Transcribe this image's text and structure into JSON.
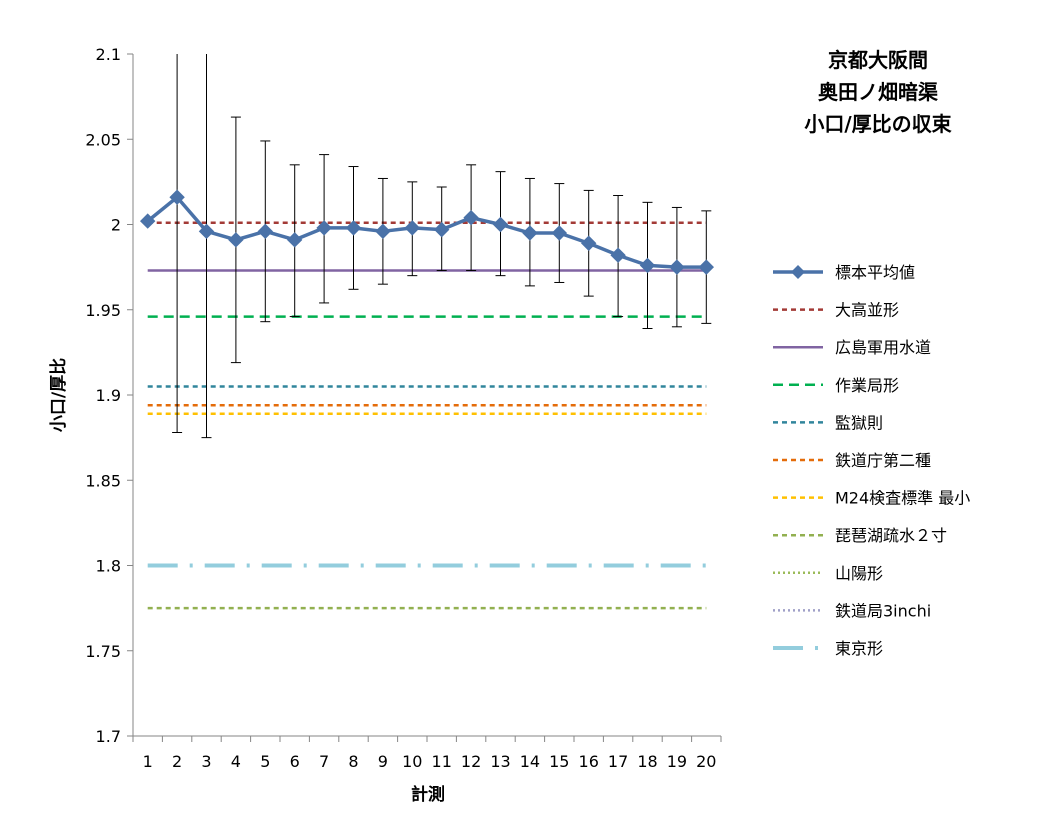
{
  "chart_data": {
    "type": "line",
    "title_lines": [
      "京都大阪間",
      "奥田ノ畑暗渠",
      "小口/厚比の収束"
    ],
    "xlabel": "計測",
    "ylabel": "小口/厚比",
    "ylim": [
      1.7,
      2.1
    ],
    "yticks": [
      "1.7",
      "1.75",
      "1.8",
      "1.85",
      "1.9",
      "1.95",
      "2",
      "2.05",
      "2.1"
    ],
    "x": [
      1,
      2,
      3,
      4,
      5,
      6,
      7,
      8,
      9,
      10,
      11,
      12,
      13,
      14,
      15,
      16,
      17,
      18,
      19,
      20
    ],
    "grid": false,
    "legend_position": "right",
    "series": [
      {
        "name": "標本平均値",
        "kind": "marker-line",
        "color": "#4a72a8",
        "values": [
          2.002,
          2.016,
          1.996,
          1.991,
          1.996,
          1.991,
          1.998,
          1.998,
          1.996,
          1.998,
          1.997,
          2.004,
          2.0,
          1.995,
          1.995,
          1.989,
          1.982,
          1.976,
          1.975,
          1.975
        ],
        "error_upper": [
          2.002,
          2.16,
          2.16,
          2.063,
          2.049,
          2.035,
          2.041,
          2.034,
          2.027,
          2.025,
          2.022,
          2.035,
          2.031,
          2.027,
          2.024,
          2.02,
          2.017,
          2.013,
          2.01,
          2.008
        ],
        "error_lower": [
          2.002,
          1.878,
          1.875,
          1.919,
          1.943,
          1.946,
          1.954,
          1.962,
          1.965,
          1.97,
          1.973,
          1.973,
          1.97,
          1.964,
          1.966,
          1.958,
          1.946,
          1.939,
          1.94,
          1.942
        ]
      },
      {
        "name": "大高並形",
        "kind": "hline",
        "value": 2.001,
        "color": "#a33a36",
        "dash": "5,4"
      },
      {
        "name": "広島軍用水道",
        "kind": "hline",
        "value": 1.973,
        "color": "#8064a2",
        "dash": ""
      },
      {
        "name": "作業局形",
        "kind": "hline",
        "value": 1.946,
        "color": "#00b050",
        "dash": "10,6"
      },
      {
        "name": "監獄則",
        "kind": "hline",
        "value": 1.905,
        "color": "#31859c",
        "dash": "5,4"
      },
      {
        "name": "鉄道庁第二種",
        "kind": "hline",
        "value": 1.894,
        "color": "#e46c0a",
        "dash": "5,4"
      },
      {
        "name": "M24検査標準 最小",
        "kind": "hline",
        "value": 1.889,
        "color": "#ffc000",
        "dash": "5,4"
      },
      {
        "name": "琵琶湖疏水２寸",
        "kind": "hline",
        "value": 1.775,
        "color": "#92b050",
        "dash": "5,4"
      },
      {
        "name": "山陽形",
        "kind": "hline",
        "value": 1.8,
        "color": "#9bbb59",
        "dash": "2,3",
        "hidden_line": true
      },
      {
        "name": "鉄道局3inchi",
        "kind": "hline",
        "value": 1.8,
        "color": "#a0a0c8",
        "dash": "2,3",
        "hidden_line": true
      },
      {
        "name": "東京形",
        "kind": "hline",
        "value": 1.8,
        "color": "#93cddd",
        "dash": "30,12,3,12",
        "width": 4
      }
    ]
  }
}
